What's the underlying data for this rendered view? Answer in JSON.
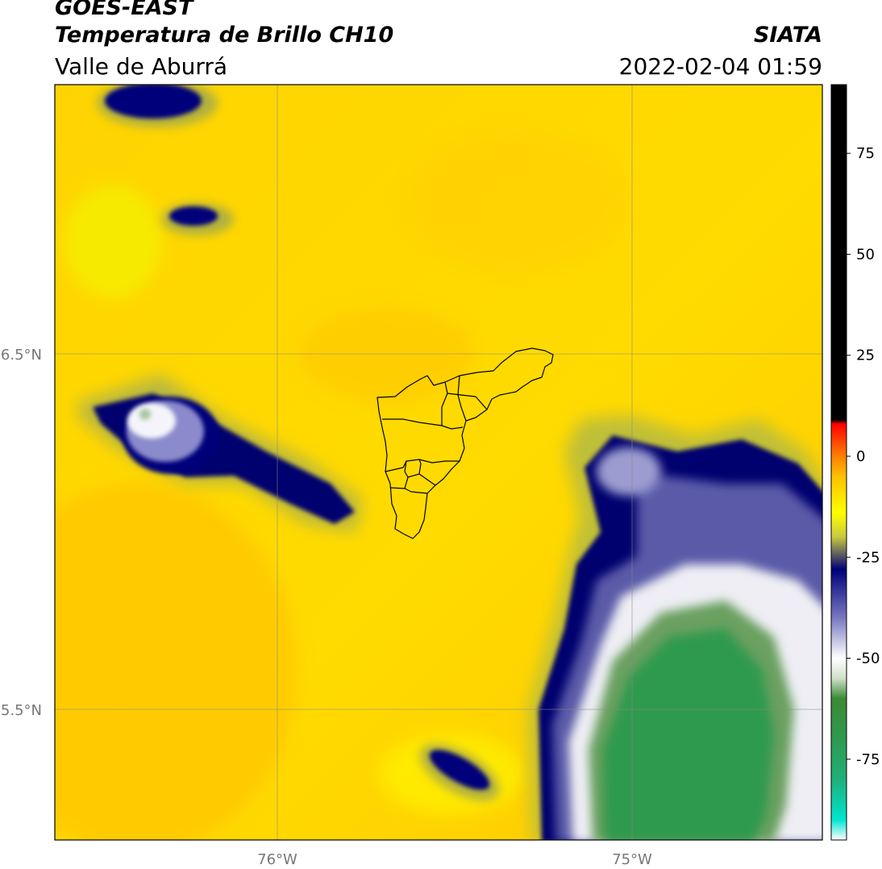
{
  "header": {
    "satellite": "GOES-EAST",
    "product": "Temperatura de Brillo CH10",
    "region": "Valle de Aburrá",
    "org": "SIATA",
    "datetime": "2022-02-04 01:59"
  },
  "map": {
    "lat_labels": [
      "6.5°N",
      "5.5°N"
    ],
    "lon_labels": [
      "76°W",
      "75°W"
    ]
  },
  "colorbar": {
    "ticks": [
      "75",
      "50",
      "25",
      "0",
      "-25",
      "-50",
      "-75"
    ],
    "stops": [
      {
        "v": -95,
        "c": "#ffffff"
      },
      {
        "v": -90,
        "c": "#00e5d0"
      },
      {
        "v": -80,
        "c": "#1fb07a"
      },
      {
        "v": -70,
        "c": "#2e9a4f"
      },
      {
        "v": -60,
        "c": "#3b8a35"
      },
      {
        "v": -55,
        "c": "#cfe0c8"
      },
      {
        "v": -50,
        "c": "#ffffff"
      },
      {
        "v": -40,
        "c": "#7878c0"
      },
      {
        "v": -28,
        "c": "#00007a"
      },
      {
        "v": -20,
        "c": "#c8c840"
      },
      {
        "v": -14,
        "c": "#ffff00"
      },
      {
        "v": -5,
        "c": "#ffc000"
      },
      {
        "v": 0,
        "c": "#ff8000"
      },
      {
        "v": 8,
        "c": "#ff0000"
      },
      {
        "v": 9,
        "c": "#000000"
      },
      {
        "v": 92,
        "c": "#000000"
      }
    ]
  }
}
